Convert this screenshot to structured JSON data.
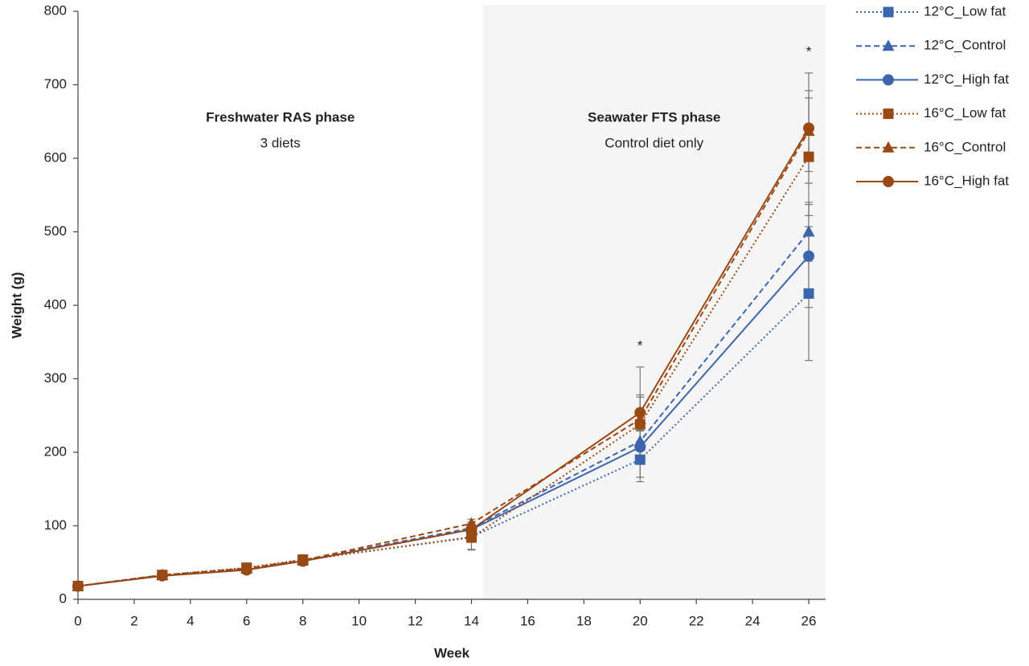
{
  "chart_data": {
    "type": "line",
    "x_label": "Week",
    "y_label": "Weight (g)",
    "x": [
      0,
      3,
      6,
      8,
      14,
      20,
      26
    ],
    "xlim": [
      0,
      26.6
    ],
    "xticks": [
      0,
      2,
      4,
      6,
      8,
      10,
      12,
      14,
      16,
      18,
      20,
      22,
      24,
      26
    ],
    "ylim": [
      0,
      800
    ],
    "yticks": [
      0,
      100,
      200,
      300,
      400,
      500,
      600,
      700,
      800
    ],
    "shaded_region": {
      "x": [
        14.4,
        26.6
      ],
      "color": "#f5f5f5"
    },
    "phases": [
      {
        "title": "Freshwater RAS phase",
        "subtitle": "3 diets"
      },
      {
        "title": "Seawater FTS phase",
        "subtitle": "Control diet only"
      }
    ],
    "annotations": [
      {
        "text": "*",
        "x": 20
      },
      {
        "text": "*",
        "x": 26
      }
    ],
    "legend": "top-right",
    "series": [
      {
        "name": "12°C_Low fat",
        "color": "#3d65ae",
        "marker": "square",
        "dash": "dotted",
        "values": [
          18,
          33,
          42,
          53,
          85,
          190,
          416
        ],
        "errors": [
          null,
          null,
          null,
          null,
          17,
          24,
          91
        ]
      },
      {
        "name": "12°C_Control",
        "color": "#3d65ae",
        "marker": "triangle",
        "dash": "dashed",
        "values": [
          18,
          33,
          42,
          53,
          97,
          215,
          500
        ],
        "errors": [
          null,
          null,
          null,
          null,
          8,
          20,
          40
        ]
      },
      {
        "name": "12°C_High fat",
        "color": "#3d65ae",
        "marker": "circle",
        "dash": "solid",
        "values": [
          18,
          32,
          40,
          52,
          95,
          207,
          467
        ],
        "errors": [
          null,
          null,
          null,
          null,
          8,
          22,
          70
        ]
      },
      {
        "name": "16°C_Low fat",
        "color": "#9a4814",
        "marker": "square",
        "dash": "dotted",
        "values": [
          18,
          33,
          43,
          54,
          84,
          238,
          602
        ],
        "errors": [
          null,
          null,
          null,
          null,
          17,
          78,
          80
        ]
      },
      {
        "name": "16°C_Control",
        "color": "#9a4814",
        "marker": "triangle",
        "dash": "dashed",
        "values": [
          18,
          33,
          42,
          53,
          103,
          245,
          637
        ],
        "errors": [
          null,
          null,
          null,
          null,
          6,
          30,
          55
        ]
      },
      {
        "name": "16°C_High fat",
        "color": "#9a4814",
        "marker": "circle",
        "dash": "solid",
        "values": [
          18,
          32,
          40,
          52,
          95,
          254,
          641
        ],
        "errors": [
          null,
          null,
          null,
          null,
          8,
          24,
          75
        ]
      }
    ]
  }
}
